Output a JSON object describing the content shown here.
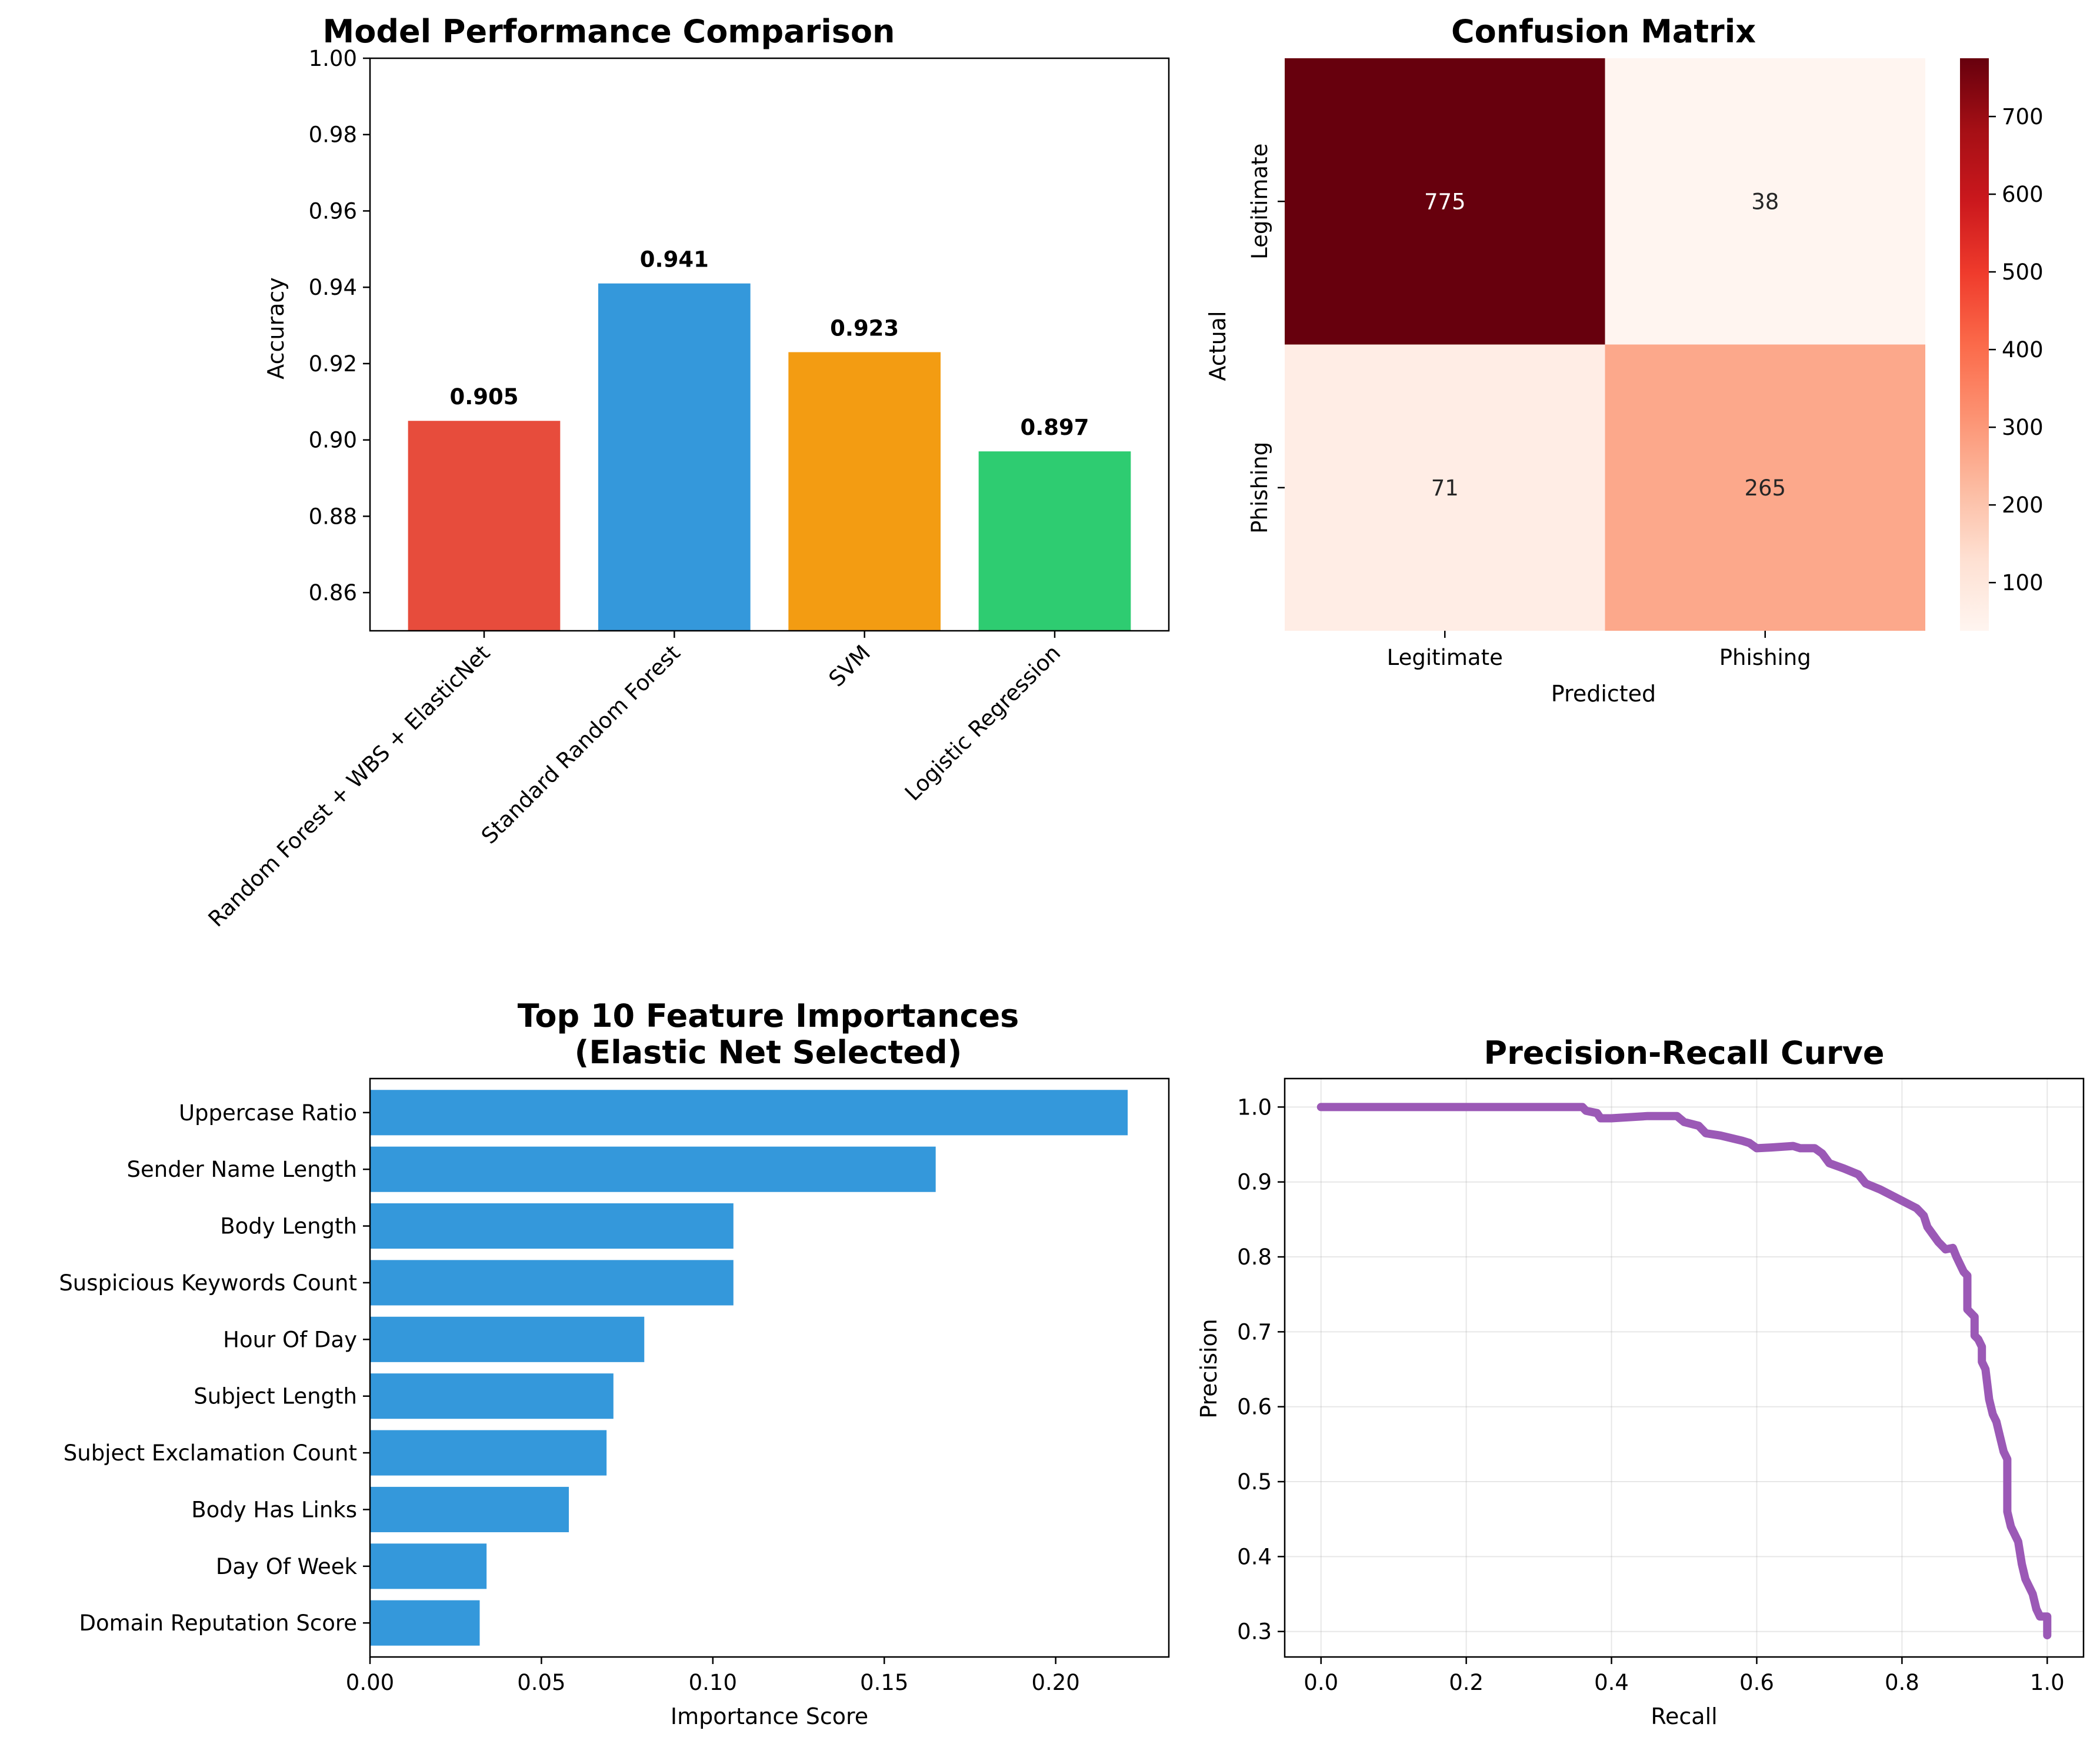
{
  "chart_data": [
    {
      "type": "bar",
      "title": "Model Performance Comparison",
      "xlabel": "",
      "ylabel": "Accuracy",
      "categories": [
        "Random Forest + WBS + ElasticNet",
        "Standard Random Forest",
        "SVM",
        "Logistic Regression"
      ],
      "values": [
        0.905,
        0.941,
        0.923,
        0.897
      ],
      "value_labels": [
        "0.905",
        "0.941",
        "0.923",
        "0.897"
      ],
      "colors": [
        "#e74c3c",
        "#3498db",
        "#f39c12",
        "#2ecc71"
      ],
      "ylim": [
        0.85,
        1.0
      ],
      "yticks": [
        0.86,
        0.88,
        0.9,
        0.92,
        0.94,
        0.96,
        0.98,
        1.0
      ],
      "ytick_labels": [
        "0.86",
        "0.88",
        "0.90",
        "0.92",
        "0.94",
        "0.96",
        "0.98",
        "1.00"
      ],
      "grid": false
    },
    {
      "type": "heatmap",
      "title": "Confusion Matrix",
      "xlabel": "Predicted",
      "ylabel": "Actual",
      "x_categories": [
        "Legitimate",
        "Phishing"
      ],
      "y_categories": [
        "Legitimate",
        "Phishing"
      ],
      "values": [
        [
          775,
          38
        ],
        [
          71,
          265
        ]
      ],
      "colormap": "Reds",
      "colorbar_range": [
        38,
        775
      ],
      "colorbar_ticks": [
        100,
        200,
        300,
        400,
        500,
        600,
        700
      ],
      "colorbar_tick_labels": [
        "100",
        "200",
        "300",
        "400",
        "500",
        "600",
        "700"
      ]
    },
    {
      "type": "bar",
      "orientation": "horizontal",
      "title": "Top 10 Feature Importances",
      "subtitle": "(Elastic Net Selected)",
      "xlabel": "Importance Score",
      "ylabel": "",
      "categories": [
        "Uppercase Ratio",
        "Sender Name Length",
        "Body Length",
        "Suspicious Keywords Count",
        "Hour Of Day",
        "Subject Length",
        "Subject Exclamation Count",
        "Body Has Links",
        "Day Of Week",
        "Domain Reputation Score"
      ],
      "values": [
        0.221,
        0.165,
        0.106,
        0.106,
        0.08,
        0.071,
        0.069,
        0.058,
        0.034,
        0.032
      ],
      "color": "#3498db",
      "xlim": [
        0,
        0.233
      ],
      "xticks": [
        0.0,
        0.05,
        0.1,
        0.15,
        0.2
      ],
      "xtick_labels": [
        "0.00",
        "0.05",
        "0.10",
        "0.15",
        "0.20"
      ],
      "grid": false
    },
    {
      "type": "line",
      "title": "Precision-Recall Curve",
      "xlabel": "Recall",
      "ylabel": "Precision",
      "color": "#9b59b6",
      "xlim": [
        -0.05,
        1.05
      ],
      "ylim": [
        0.266,
        1.038
      ],
      "xticks": [
        0.0,
        0.2,
        0.4,
        0.6,
        0.8,
        1.0
      ],
      "xtick_labels": [
        "0.0",
        "0.2",
        "0.4",
        "0.6",
        "0.8",
        "1.0"
      ],
      "yticks": [
        0.3,
        0.4,
        0.5,
        0.6,
        0.7,
        0.8,
        0.9,
        1.0
      ],
      "ytick_labels": [
        "0.3",
        "0.4",
        "0.5",
        "0.6",
        "0.7",
        "0.8",
        "0.9",
        "1.0"
      ],
      "grid": true,
      "x": [
        0.0,
        0.1,
        0.2,
        0.3,
        0.36,
        0.365,
        0.38,
        0.385,
        0.4,
        0.45,
        0.49,
        0.5,
        0.52,
        0.53,
        0.55,
        0.58,
        0.59,
        0.6,
        0.62,
        0.65,
        0.66,
        0.68,
        0.69,
        0.7,
        0.72,
        0.74,
        0.75,
        0.77,
        0.79,
        0.8,
        0.82,
        0.83,
        0.835,
        0.85,
        0.86,
        0.87,
        0.875,
        0.88,
        0.885,
        0.89,
        0.89,
        0.9,
        0.9,
        0.905,
        0.91,
        0.91,
        0.915,
        0.92,
        0.925,
        0.93,
        0.935,
        0.94,
        0.945,
        0.945,
        0.95,
        0.955,
        0.96,
        0.965,
        0.97,
        0.975,
        0.98,
        0.985,
        0.99,
        1.0,
        1.0
      ],
      "y": [
        1.0,
        1.0,
        1.0,
        1.0,
        1.0,
        0.995,
        0.992,
        0.985,
        0.985,
        0.988,
        0.988,
        0.98,
        0.975,
        0.965,
        0.962,
        0.955,
        0.952,
        0.945,
        0.946,
        0.948,
        0.945,
        0.945,
        0.938,
        0.925,
        0.918,
        0.91,
        0.898,
        0.89,
        0.88,
        0.875,
        0.865,
        0.855,
        0.84,
        0.82,
        0.81,
        0.812,
        0.8,
        0.79,
        0.78,
        0.775,
        0.73,
        0.72,
        0.695,
        0.69,
        0.68,
        0.66,
        0.65,
        0.61,
        0.59,
        0.58,
        0.56,
        0.54,
        0.53,
        0.46,
        0.44,
        0.43,
        0.42,
        0.39,
        0.37,
        0.36,
        0.35,
        0.33,
        0.32,
        0.32,
        0.295
      ]
    }
  ]
}
